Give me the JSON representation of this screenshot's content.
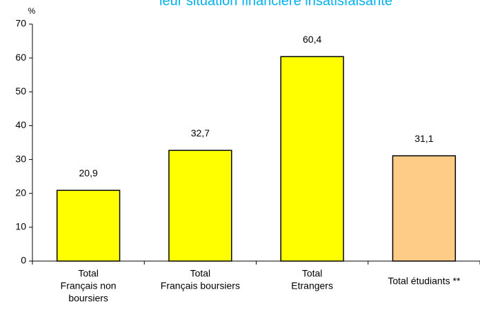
{
  "chart_data": {
    "type": "bar",
    "title": "leur situation financière insatisfaisante",
    "y_label": "%",
    "categories": [
      [
        "Total",
        "Français non",
        "boursiers"
      ],
      [
        "Total",
        "Français boursiers"
      ],
      [
        "Total",
        "Etrangers"
      ],
      [
        "Total étudiants **"
      ]
    ],
    "values": [
      20.9,
      32.7,
      60.4,
      31.1
    ],
    "value_labels": [
      "20,9",
      "32,7",
      "60,4",
      "31,1"
    ],
    "colors": [
      "#ffff00",
      "#ffff00",
      "#ffff00",
      "#ffcc88"
    ],
    "ylim": [
      0,
      70
    ],
    "yticks": [
      0,
      10,
      20,
      30,
      40,
      50,
      60,
      70
    ],
    "grid": false
  }
}
